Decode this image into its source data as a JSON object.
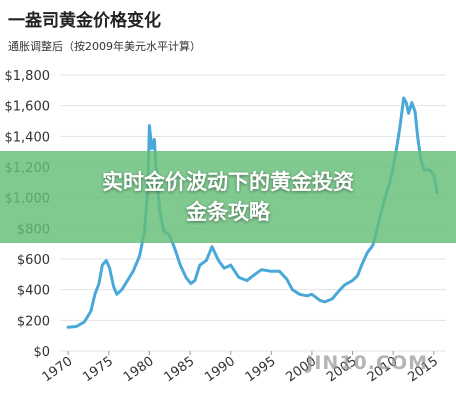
{
  "chart_data": {
    "type": "line",
    "title": "一盎司黄金价格变化",
    "subtitle": "通胀调整后（按2009年美元水平计算）",
    "x_ticks": [
      "1970",
      "1975",
      "1980",
      "1985",
      "1990",
      "1995",
      "2000",
      "2005",
      "2010",
      "2015"
    ],
    "y_ticks": [
      "$0",
      "$200",
      "$400",
      "$600",
      "$800",
      "$1,000",
      "$1,200",
      "$1,400",
      "$1,600",
      "$1,800"
    ],
    "xlim": [
      1969,
      2016.5
    ],
    "ylim": [
      0,
      1800
    ],
    "grid": true,
    "line_color": "#4aa8d8",
    "x": [
      1970,
      1971,
      1972,
      1972.8,
      1973.3,
      1973.8,
      1974.2,
      1974.7,
      1975.1,
      1975.6,
      1976.0,
      1976.6,
      1977.2,
      1978,
      1978.8,
      1979.4,
      1979.8,
      1980.0,
      1980.3,
      1980.6,
      1980.9,
      1981.3,
      1981.8,
      1982.4,
      1982.9,
      1983.3,
      1983.8,
      1984.5,
      1985.1,
      1985.6,
      1986.2,
      1987.0,
      1987.7,
      1988.5,
      1989.2,
      1990,
      1991,
      1992,
      1993,
      1993.8,
      1995,
      1996,
      1996.9,
      1997.6,
      1998.5,
      1999.4,
      2000,
      2001,
      2001.6,
      2002.5,
      2003.3,
      2004,
      2005,
      2005.6,
      2006.2,
      2006.8,
      2007.5,
      2008,
      2008.5,
      2009,
      2009.6,
      2010.2,
      2010.8,
      2011.3,
      2011.6,
      2011.9,
      2012.3,
      2012.7,
      2013.0,
      2013.4,
      2013.8,
      2014.5,
      2015.0,
      2015.4
    ],
    "y": [
      155,
      160,
      190,
      260,
      370,
      440,
      560,
      590,
      540,
      420,
      370,
      400,
      450,
      520,
      620,
      780,
      1050,
      1470,
      1320,
      1380,
      1120,
      900,
      780,
      760,
      700,
      640,
      560,
      480,
      440,
      460,
      560,
      590,
      680,
      590,
      540,
      560,
      480,
      460,
      500,
      530,
      520,
      520,
      470,
      400,
      370,
      360,
      370,
      330,
      320,
      340,
      390,
      430,
      460,
      490,
      570,
      640,
      690,
      790,
      900,
      1000,
      1100,
      1250,
      1450,
      1650,
      1620,
      1550,
      1620,
      1560,
      1400,
      1250,
      1180,
      1180,
      1150,
      1030
    ]
  },
  "banner": {
    "line1": "实时金价波动下的黄金投资",
    "line2": "金条攻略"
  },
  "watermark": "JIN10.COM"
}
